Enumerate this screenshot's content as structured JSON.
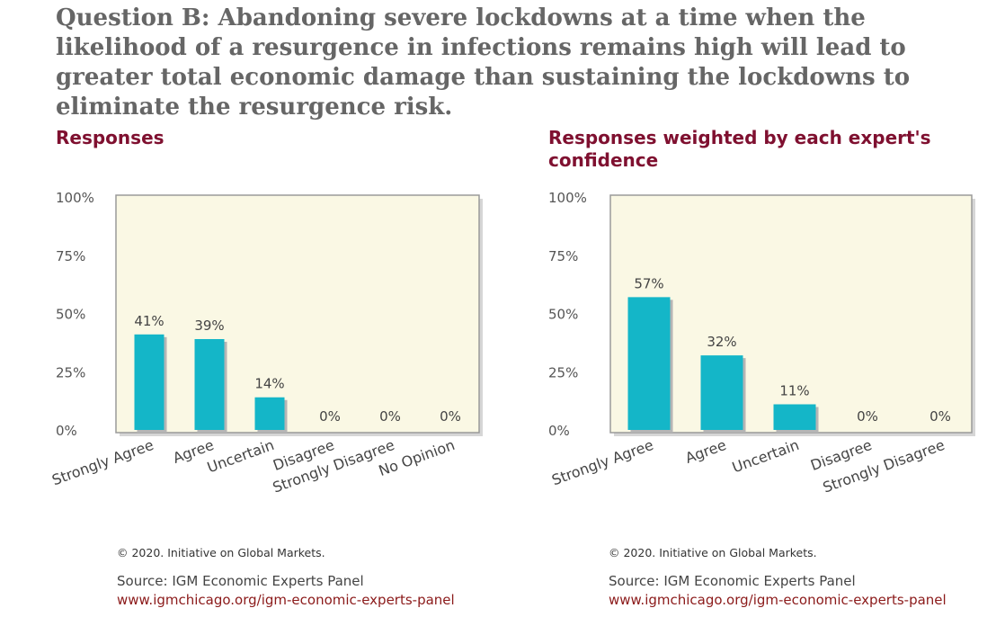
{
  "question": "Question B: Abandoning severe lockdowns at a time when the likelihood of a resurgence in infections remains high will lead to greater total economic damage than sustaining the lockdowns to eliminate the resurgence risk.",
  "colors": {
    "bar": "#14b6c8",
    "plot_bg": "#faf8e4",
    "title": "#7f1030",
    "link": "#8b1a1a"
  },
  "chart_data": [
    {
      "type": "bar",
      "title": "Responses",
      "categories": [
        "Strongly Agree",
        "Agree",
        "Uncertain",
        "Disagree",
        "Strongly Disagree",
        "No Opinion"
      ],
      "values": [
        41,
        39,
        14,
        0,
        0,
        0
      ],
      "value_labels": [
        "41%",
        "39%",
        "14%",
        "0%",
        "0%",
        "0%"
      ],
      "yticks": [
        "0%",
        "25%",
        "50%",
        "75%",
        "100%"
      ],
      "ylim": [
        0,
        100
      ],
      "grid": false,
      "legend": "none"
    },
    {
      "type": "bar",
      "title": "Responses weighted by each expert's confidence",
      "categories": [
        "Strongly Agree",
        "Agree",
        "Uncertain",
        "Disagree",
        "Strongly Disagree"
      ],
      "values": [
        57,
        32,
        11,
        0,
        0
      ],
      "value_labels": [
        "57%",
        "32%",
        "11%",
        "0%",
        "0%"
      ],
      "yticks": [
        "0%",
        "25%",
        "50%",
        "75%",
        "100%"
      ],
      "ylim": [
        0,
        100
      ],
      "grid": false,
      "legend": "none"
    }
  ],
  "footer": {
    "copyright": "© 2020. Initiative on Global Markets.",
    "source": "Source: IGM Economic Experts Panel",
    "link": "www.igmchicago.org/igm-economic-experts-panel"
  }
}
